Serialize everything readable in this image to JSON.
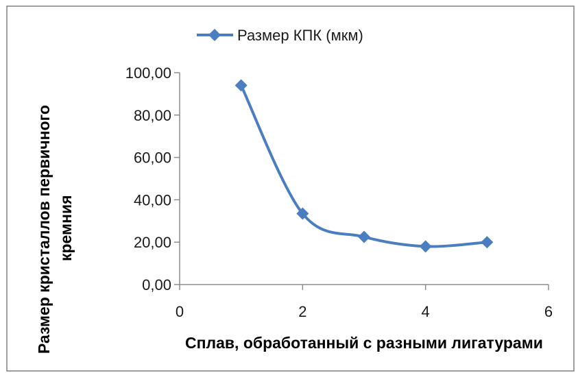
{
  "chart_data": {
    "type": "line",
    "smooth": true,
    "series": [
      {
        "name": "Размер КПК (мкм)",
        "x": [
          1,
          2,
          3,
          4,
          5
        ],
        "values": [
          94.0,
          33.5,
          22.5,
          18.0,
          20.0
        ],
        "color": "#4a7ec0",
        "marker": "diamond"
      }
    ],
    "xlabel": "Сплав, обработанный с разными лигатурами",
    "ylabel_line1": "Размер кристаллов первичного",
    "ylabel_line2": "кремния",
    "xlim": [
      0,
      6
    ],
    "ylim": [
      0,
      100
    ],
    "xticks": [
      0,
      2,
      4,
      6
    ],
    "yticks": [
      0,
      20,
      40,
      60,
      80,
      100
    ],
    "xtick_labels": [
      "0",
      "2",
      "4",
      "6"
    ],
    "ytick_labels": [
      "0,00",
      "20,00",
      "40,00",
      "60,00",
      "80,00",
      "100,00"
    ],
    "grid": false,
    "legend_position": "top"
  },
  "colors": {
    "axis": "#8c8c8c",
    "frame": "#7f7f7f",
    "series": "#4a7ec0"
  }
}
